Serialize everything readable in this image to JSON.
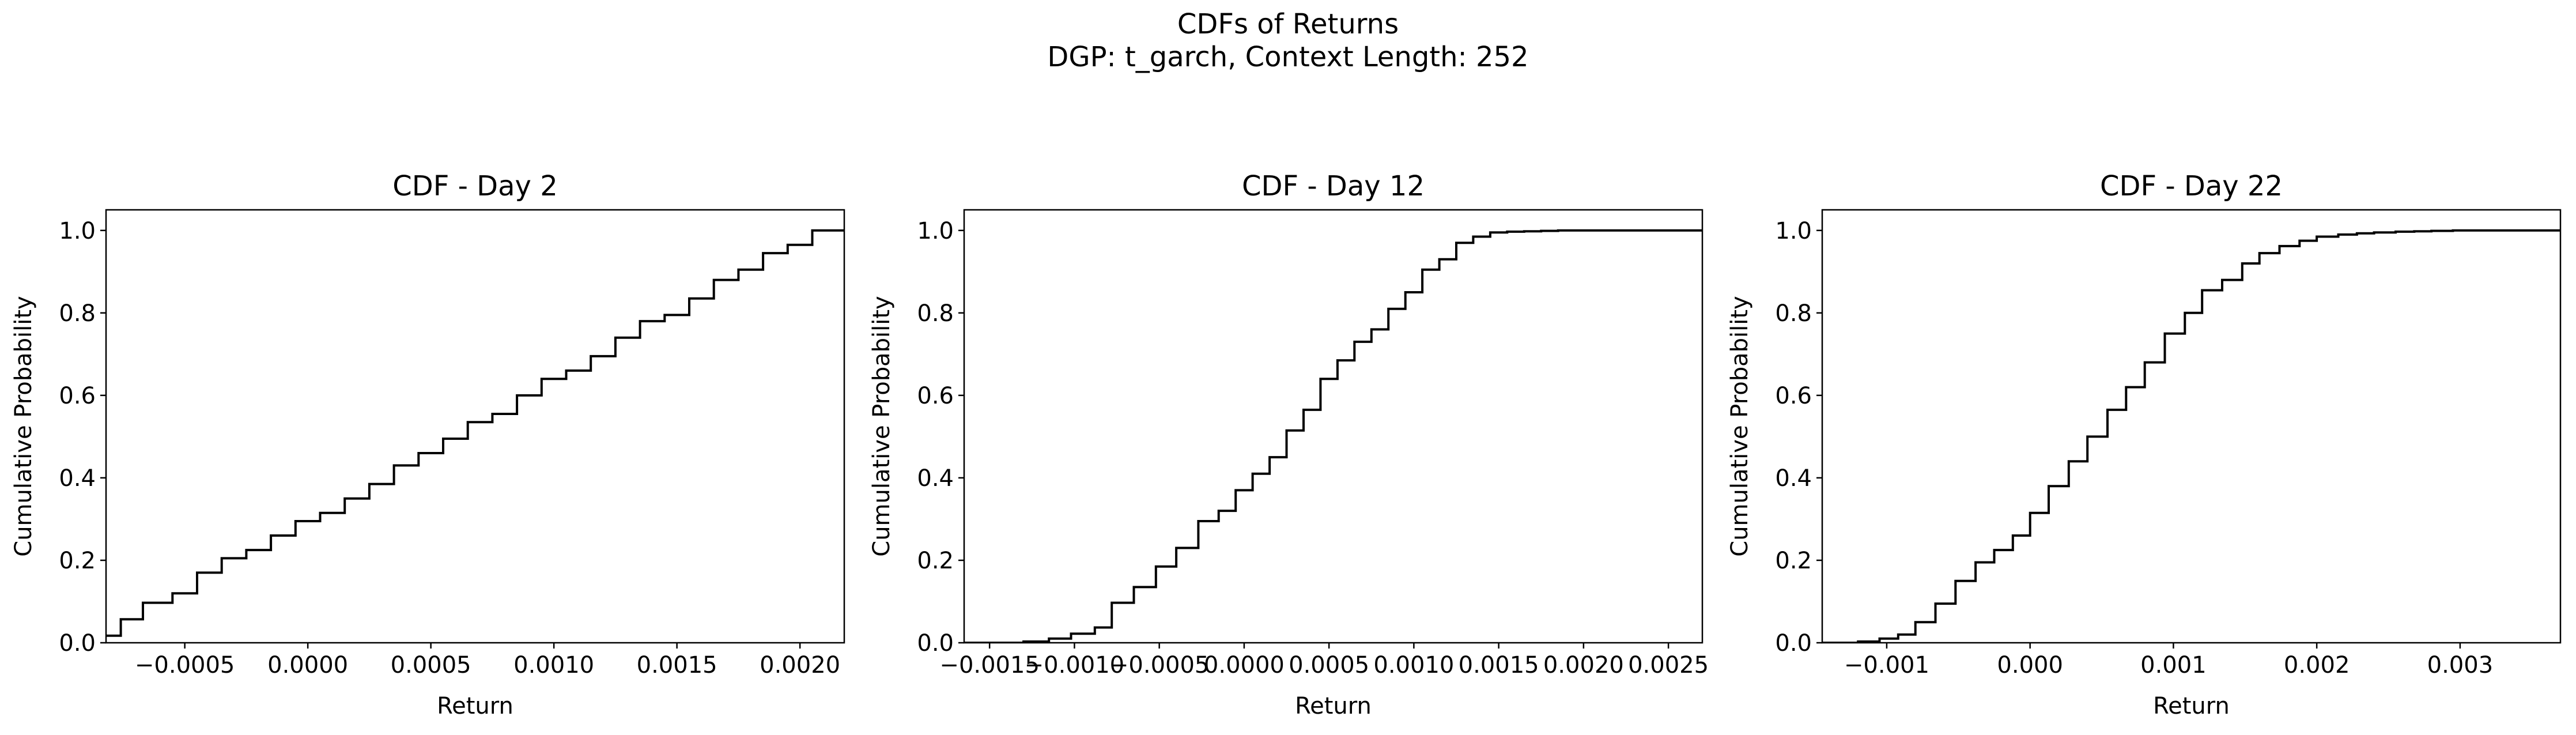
{
  "figure": {
    "title": "CDFs of Returns",
    "subtitle": "DGP: t_garch, Context Length: 252"
  },
  "chart_data": [
    {
      "type": "line",
      "step": true,
      "title": "CDF - Day 2",
      "xlabel": "Return",
      "ylabel": "Cumulative Probability",
      "xlim": [
        -0.00082,
        0.00218
      ],
      "ylim": [
        0,
        1.05
      ],
      "xticks": [
        -0.0005,
        0.0,
        0.0005,
        0.001,
        0.0015,
        0.002
      ],
      "xticklabels": [
        "−0.0005",
        "0.0000",
        "0.0005",
        "0.0010",
        "0.0015",
        "0.0020"
      ],
      "yticks": [
        0.0,
        0.2,
        0.4,
        0.6,
        0.8,
        1.0
      ],
      "yticklabels": [
        "0.0",
        "0.2",
        "0.4",
        "0.6",
        "0.8",
        "1.0"
      ],
      "grid": false,
      "color": "#000000",
      "x": [
        -0.00082,
        -0.00076,
        -0.00067,
        -0.00055,
        -0.00045,
        -0.00035,
        -0.00025,
        -0.00015,
        -5e-05,
        5e-05,
        0.00015,
        0.00025,
        0.00035,
        0.00045,
        0.00055,
        0.00065,
        0.00075,
        0.00085,
        0.00095,
        0.00105,
        0.00115,
        0.00125,
        0.00135,
        0.00145,
        0.00155,
        0.00165,
        0.00175,
        0.00185,
        0.00195,
        0.00205,
        0.00218
      ],
      "y": [
        0.017,
        0.057,
        0.097,
        0.12,
        0.17,
        0.205,
        0.225,
        0.26,
        0.295,
        0.315,
        0.35,
        0.385,
        0.43,
        0.46,
        0.495,
        0.535,
        0.555,
        0.6,
        0.64,
        0.66,
        0.695,
        0.74,
        0.78,
        0.795,
        0.835,
        0.88,
        0.905,
        0.945,
        0.965,
        1.0,
        1.0
      ]
    },
    {
      "type": "line",
      "step": true,
      "title": "CDF - Day 12",
      "xlabel": "Return",
      "ylabel": "Cumulative Probability",
      "xlim": [
        -0.00165,
        0.0027
      ],
      "ylim": [
        0,
        1.05
      ],
      "xticks": [
        -0.0015,
        -0.001,
        -0.0005,
        0.0,
        0.0005,
        0.001,
        0.0015,
        0.002,
        0.0025
      ],
      "xticklabels": [
        "−0.0015",
        "−0.0010",
        "−0.0005",
        "0.0000",
        "0.0005",
        "0.0010",
        "0.0015",
        "0.0020",
        "0.0025"
      ],
      "yticks": [
        0.0,
        0.2,
        0.4,
        0.6,
        0.8,
        1.0
      ],
      "yticklabels": [
        "0.0",
        "0.2",
        "0.4",
        "0.6",
        "0.8",
        "1.0"
      ],
      "grid": false,
      "color": "#000000",
      "x": [
        -0.00165,
        -0.0013,
        -0.00115,
        -0.00102,
        -0.00088,
        -0.00078,
        -0.00065,
        -0.00052,
        -0.0004,
        -0.00027,
        -0.00015,
        -5e-05,
        5e-05,
        0.00015,
        0.00025,
        0.00035,
        0.00045,
        0.00055,
        0.00065,
        0.00075,
        0.00085,
        0.00095,
        0.00105,
        0.00115,
        0.00125,
        0.00135,
        0.00145,
        0.00155,
        0.00165,
        0.00175,
        0.00185,
        0.00195,
        0.00205,
        0.00215,
        0.00225,
        0.0027
      ],
      "y": [
        0.0,
        0.003,
        0.01,
        0.022,
        0.037,
        0.097,
        0.135,
        0.185,
        0.23,
        0.295,
        0.32,
        0.37,
        0.41,
        0.45,
        0.515,
        0.565,
        0.64,
        0.685,
        0.73,
        0.76,
        0.81,
        0.85,
        0.905,
        0.93,
        0.97,
        0.985,
        0.995,
        0.997,
        0.998,
        0.999,
        1.0,
        1.0,
        1.0,
        1.0,
        1.0,
        1.0
      ]
    },
    {
      "type": "line",
      "step": true,
      "title": "CDF - Day 22",
      "xlabel": "Return",
      "ylabel": "Cumulative Probability",
      "xlim": [
        -0.00145,
        0.0037
      ],
      "ylim": [
        0,
        1.05
      ],
      "xticks": [
        -0.001,
        0.0,
        0.001,
        0.002,
        0.003
      ],
      "xticklabels": [
        "−0.001",
        "0.000",
        "0.001",
        "0.002",
        "0.003"
      ],
      "yticks": [
        0.0,
        0.2,
        0.4,
        0.6,
        0.8,
        1.0
      ],
      "yticklabels": [
        "0.0",
        "0.2",
        "0.4",
        "0.6",
        "0.8",
        "1.0"
      ],
      "grid": false,
      "color": "#000000",
      "x": [
        -0.00145,
        -0.0012,
        -0.00105,
        -0.00092,
        -0.0008,
        -0.00066,
        -0.00052,
        -0.00038,
        -0.00025,
        -0.00012,
        0.0,
        0.00013,
        0.00027,
        0.0004,
        0.00054,
        0.00067,
        0.0008,
        0.00094,
        0.00108,
        0.0012,
        0.00134,
        0.00148,
        0.0016,
        0.00174,
        0.00188,
        0.002,
        0.00215,
        0.00228,
        0.0024,
        0.00255,
        0.00268,
        0.0028,
        0.00295,
        0.0031,
        0.00325,
        0.0034,
        0.0037
      ],
      "y": [
        0.0,
        0.003,
        0.01,
        0.02,
        0.05,
        0.095,
        0.15,
        0.195,
        0.225,
        0.26,
        0.315,
        0.38,
        0.44,
        0.5,
        0.565,
        0.62,
        0.68,
        0.75,
        0.8,
        0.855,
        0.88,
        0.92,
        0.945,
        0.962,
        0.975,
        0.985,
        0.99,
        0.993,
        0.995,
        0.997,
        0.998,
        0.999,
        1.0,
        1.0,
        1.0,
        1.0,
        1.0
      ]
    }
  ]
}
